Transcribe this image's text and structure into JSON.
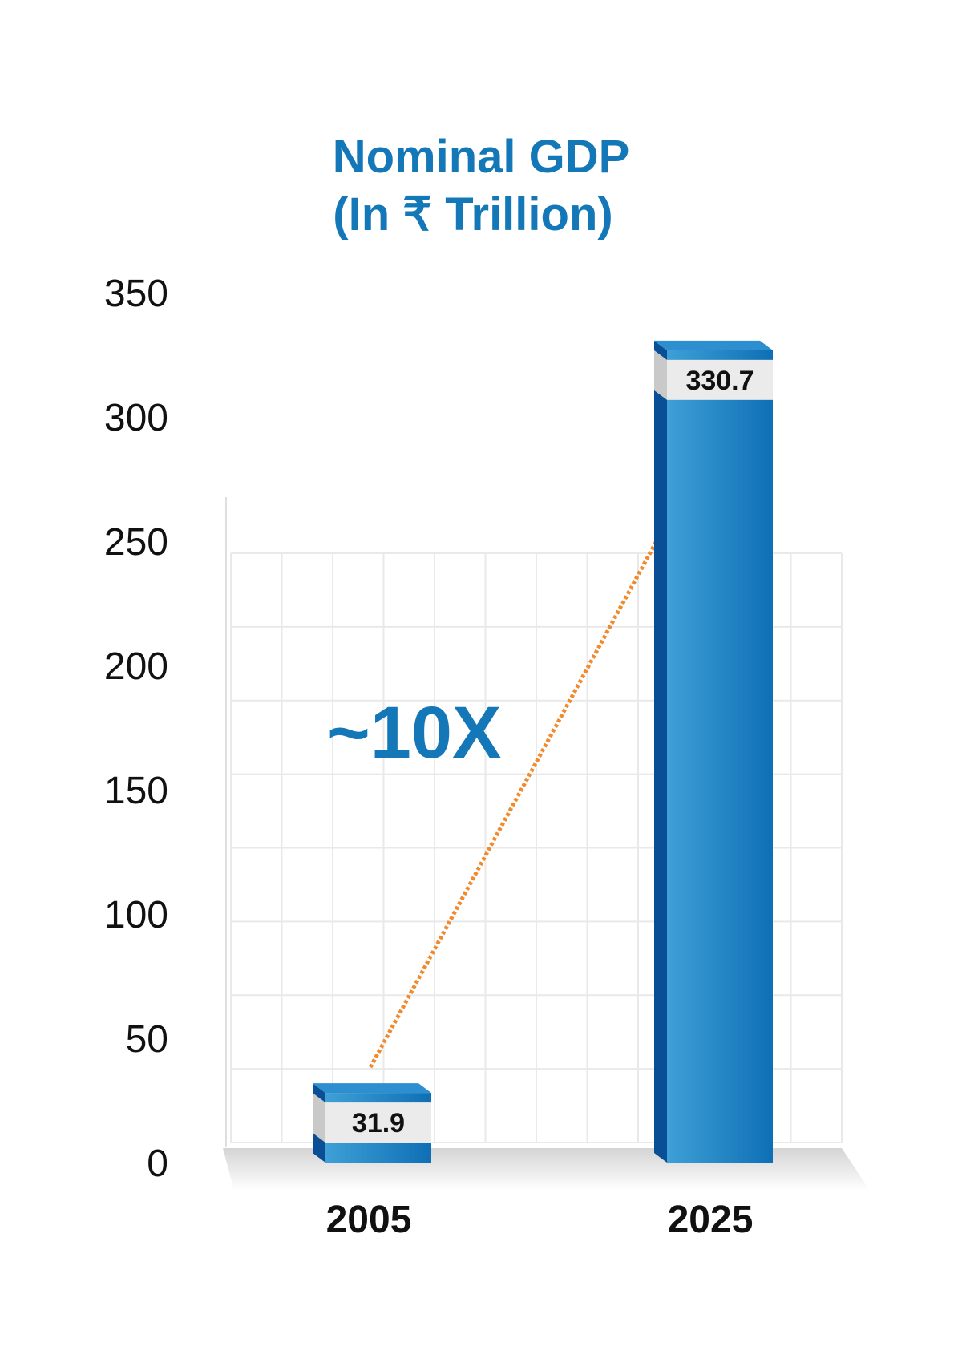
{
  "chart_data": {
    "type": "bar",
    "title": "Nominal GDP",
    "subtitle": "(In ₹ Trillion)",
    "categories": [
      "2005",
      "2025"
    ],
    "values": [
      31.9,
      330.7
    ],
    "value_labels": [
      "31.9",
      "330.7"
    ],
    "ylim": [
      0,
      350
    ],
    "yticks": [
      0,
      50,
      100,
      150,
      200,
      250,
      300,
      350
    ],
    "ytick_labels": [
      "0",
      "50",
      "100",
      "150",
      "200",
      "250",
      "300",
      "350"
    ],
    "xlabel": "",
    "ylabel": "",
    "grid": true,
    "legend": "none",
    "annotation": "~10X",
    "colors": {
      "title": "#1478b8",
      "annotation": "#1478b8",
      "bar_front_light": "#3ea0d6",
      "bar_front_dark": "#0f6fb6",
      "bar_side": "#0a4f96",
      "bar_top": "#2d8fd0",
      "label_band": "#ebebeb",
      "trend_line": "#f08a2c",
      "grid": "#e9e9e9",
      "floor": "#d4d4d4"
    }
  }
}
